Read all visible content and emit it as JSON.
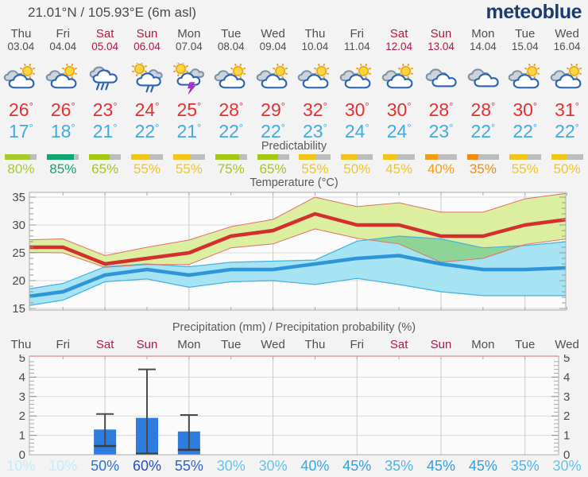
{
  "header": {
    "coordinates": "21.01°N / 105.93°E (6m asl)",
    "logo": "meteoblue"
  },
  "sections": {
    "predictability_title": "Predictability",
    "temperature_title": "Temperature (°C)",
    "precipitation_title": "Precipitation (mm) / Precipitation probability (%)"
  },
  "colors": {
    "logo_navy": "#1c3c6e",
    "weekend_red": "#b5173f",
    "tmax_red": "#e23131",
    "tmin_blue": "#42aadf",
    "temp_max_line": "#d42e2e",
    "temp_min_line": "#2e96d8",
    "temp_max_band": "#dcee9f",
    "temp_min_band": "#a6e3f3",
    "max_band_edge": "#e47062",
    "min_band_edge": "#41b2e2",
    "precip_bar": "#2e7ce0",
    "whisker": "#4a4a4a",
    "pred_bar_bg": "#bdbdbd",
    "grid": "#d9d9d9",
    "axis": "#ababab",
    "precip_top_border": "#e49a9a"
  },
  "days": [
    {
      "name": "Thu",
      "date": "03.04",
      "weekend": false,
      "icon": "sun-cloud",
      "tmax": 26,
      "tmin": 17,
      "predictability": 80,
      "pred_color": "#a7cb2d",
      "precip_prob": 10,
      "prob_color": "#c4ebf6"
    },
    {
      "name": "Fri",
      "date": "04.04",
      "weekend": false,
      "icon": "sun-cloud",
      "tmax": 26,
      "tmin": 18,
      "predictability": 85,
      "pred_color": "#11a56f",
      "precip_prob": 10,
      "prob_color": "#c4ebf6"
    },
    {
      "name": "Sat",
      "date": "05.04",
      "weekend": true,
      "icon": "rain",
      "tmax": 23,
      "tmin": 21,
      "predictability": 65,
      "pred_color": "#a3c715",
      "precip_prob": 50,
      "prob_color": "#2e72cf"
    },
    {
      "name": "Sun",
      "date": "06.04",
      "weekend": true,
      "icon": "sun-rain",
      "tmax": 24,
      "tmin": 22,
      "predictability": 55,
      "pred_color": "#f2c51c",
      "precip_prob": 60,
      "prob_color": "#2a4cbe"
    },
    {
      "name": "Mon",
      "date": "07.04",
      "weekend": false,
      "icon": "thunderstorm",
      "tmax": 25,
      "tmin": 21,
      "predictability": 55,
      "pred_color": "#f2c51c",
      "precip_prob": 55,
      "prob_color": "#2e63cb"
    },
    {
      "name": "Tue",
      "date": "08.04",
      "weekend": false,
      "icon": "sun-cloud",
      "tmax": 28,
      "tmin": 22,
      "predictability": 75,
      "pred_color": "#a3c715",
      "precip_prob": 30,
      "prob_color": "#64c4ec"
    },
    {
      "name": "Wed",
      "date": "09.04",
      "weekend": false,
      "icon": "sun-cloud",
      "tmax": 29,
      "tmin": 22,
      "predictability": 65,
      "pred_color": "#a3c715",
      "precip_prob": 30,
      "prob_color": "#64c4ec"
    },
    {
      "name": "Thu",
      "date": "10.04",
      "weekend": false,
      "icon": "sun-cloud",
      "tmax": 32,
      "tmin": 23,
      "predictability": 55,
      "pred_color": "#f2c51c",
      "precip_prob": 40,
      "prob_color": "#3ca6e0"
    },
    {
      "name": "Fri",
      "date": "11.04",
      "weekend": false,
      "icon": "sun-cloud",
      "tmax": 30,
      "tmin": 24,
      "predictability": 50,
      "pred_color": "#f2c51c",
      "precip_prob": 45,
      "prob_color": "#379ddb"
    },
    {
      "name": "Sat",
      "date": "12.04",
      "weekend": true,
      "icon": "sun-cloud",
      "tmax": 30,
      "tmin": 24,
      "predictability": 45,
      "pred_color": "#f2c51c",
      "precip_prob": 35,
      "prob_color": "#50b4e4"
    },
    {
      "name": "Sun",
      "date": "13.04",
      "weekend": true,
      "icon": "cloudy",
      "tmax": 28,
      "tmin": 23,
      "predictability": 40,
      "pred_color": "#f49c18",
      "precip_prob": 45,
      "prob_color": "#379ddb"
    },
    {
      "name": "Mon",
      "date": "14.04",
      "weekend": false,
      "icon": "cloudy",
      "tmax": 28,
      "tmin": 22,
      "predictability": 35,
      "pred_color": "#ef8d10",
      "precip_prob": 45,
      "prob_color": "#379ddb"
    },
    {
      "name": "Tue",
      "date": "15.04",
      "weekend": false,
      "icon": "sun-cloud",
      "tmax": 30,
      "tmin": 22,
      "predictability": 55,
      "pred_color": "#f2c51c",
      "precip_prob": 35,
      "prob_color": "#50b4e4"
    },
    {
      "name": "Wed",
      "date": "16.04",
      "weekend": false,
      "icon": "sun-cloud",
      "tmax": 31,
      "tmin": 22,
      "predictability": 50,
      "pred_color": "#f2c51c",
      "precip_prob": 30,
      "prob_color": "#64c4ec"
    }
  ],
  "chart_data": [
    {
      "type": "line",
      "title": "Temperature (°C)",
      "categories": [
        "Thu 03.04",
        "Fri 04.04",
        "Sat 05.04",
        "Sun 06.04",
        "Mon 07.04",
        "Tue 08.04",
        "Wed 09.04",
        "Thu 10.04",
        "Fri 11.04",
        "Sat 12.04",
        "Sun 13.04",
        "Mon 14.04",
        "Tue 15.04",
        "Wed 16.04"
      ],
      "ylabel": "°C",
      "ylim": [
        14.7,
        35.9
      ],
      "yticks": [
        15,
        20,
        25,
        30,
        35
      ],
      "grid": true,
      "legend": "none",
      "series": [
        {
          "name": "max_temp",
          "values": [
            26,
            26,
            23,
            24,
            25,
            28,
            29,
            32,
            30,
            30,
            28,
            28,
            30,
            31
          ]
        },
        {
          "name": "max_temp_upper_band",
          "values": [
            27.3,
            27.5,
            24.5,
            26,
            27.3,
            29.7,
            31,
            35,
            33.3,
            34,
            32.3,
            32.3,
            34.7,
            35.7
          ]
        },
        {
          "name": "max_temp_lower_band",
          "values": [
            25.1,
            25,
            22.4,
            22.9,
            22.9,
            25.9,
            26.6,
            29.3,
            27.6,
            26.6,
            23.3,
            24,
            26.5,
            27.5
          ]
        },
        {
          "name": "min_temp",
          "values": [
            17,
            18,
            21,
            22,
            21,
            22,
            22,
            23,
            24,
            24.5,
            23,
            22,
            22,
            22.3
          ]
        },
        {
          "name": "min_temp_upper_band",
          "values": [
            18.3,
            19.5,
            22.5,
            23,
            22.5,
            23.3,
            23.5,
            23.7,
            27.1,
            28,
            27.5,
            25.9,
            26.3,
            27
          ]
        },
        {
          "name": "min_temp_lower_band",
          "values": [
            15.3,
            16.5,
            19.8,
            20.3,
            18.8,
            19.8,
            20,
            19.3,
            20.4,
            19.3,
            18,
            17.3,
            17.3,
            17.3
          ]
        }
      ]
    },
    {
      "type": "bar",
      "title": "Precipitation (mm) / Precipitation probability (%)",
      "categories": [
        "Thu",
        "Fri",
        "Sat",
        "Sun",
        "Mon",
        "Tue",
        "Wed",
        "Thu",
        "Fri",
        "Sat",
        "Sun",
        "Mon",
        "Tue",
        "Wed"
      ],
      "ylabel": "mm",
      "ylim": [
        0,
        5
      ],
      "yticks": [
        0,
        1,
        2,
        3,
        4,
        5
      ],
      "values": [
        0,
        0,
        1.3,
        1.9,
        1.2,
        0,
        0,
        0,
        0,
        0,
        0,
        0,
        0,
        0
      ],
      "whisker_low": [
        null,
        null,
        0.45,
        0.05,
        0.25,
        null,
        null,
        null,
        null,
        null,
        null,
        null,
        null,
        null
      ],
      "whisker_high": [
        null,
        null,
        2.1,
        4.4,
        2.05,
        null,
        null,
        null,
        null,
        null,
        null,
        null,
        null,
        null
      ],
      "probability_percent": [
        10,
        10,
        50,
        60,
        55,
        30,
        30,
        40,
        45,
        35,
        45,
        45,
        35,
        30
      ]
    }
  ]
}
